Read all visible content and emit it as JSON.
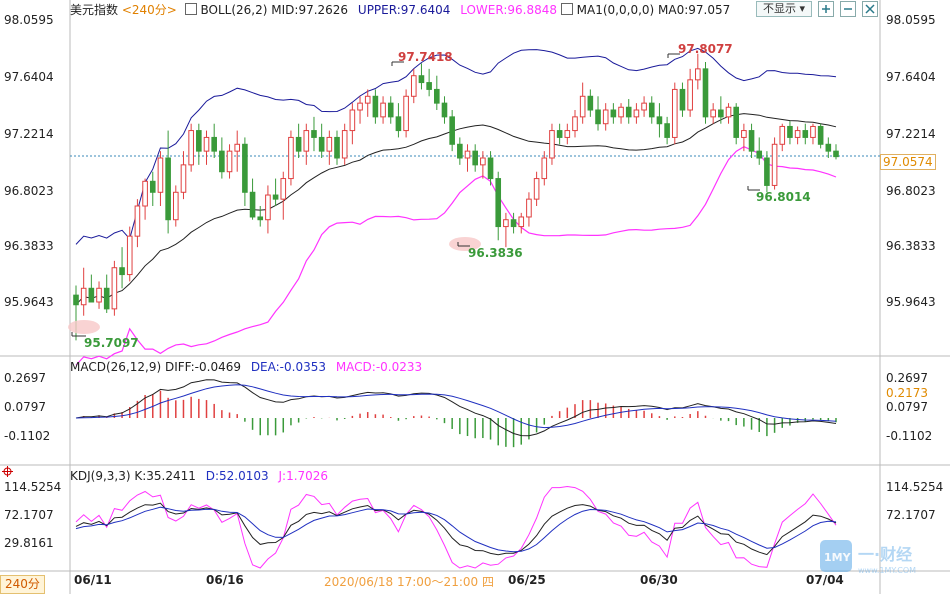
{
  "header": {
    "symbol": "美元指数",
    "period": "<240分>",
    "boll": "BOLL(26,2)",
    "mid": "MID:97.2626",
    "upper": "UPPER:97.6404",
    "lower": "LOWER:96.8848",
    "ma": "MA1(0,0,0,0)",
    "ma0": "MA0:97.057",
    "hide_btn": "不显示"
  },
  "main_axis": [
    "98.0595",
    "97.6404",
    "97.2214",
    "96.8023",
    "96.3833",
    "95.9643"
  ],
  "last_price": "97.0574",
  "annotations": {
    "high1": "97.7418",
    "high2": "97.8077",
    "low1": "95.7097",
    "low2": "96.3836",
    "low3": "96.8014"
  },
  "macd": {
    "title": "MACD(26,12,9)",
    "diff": "DIFF:-0.0469",
    "dea": "DEA:-0.0353",
    "macd": "MACD:-0.0233",
    "axis": [
      "0.2697",
      "0.0797",
      "-0.1102"
    ],
    "marker": "0.2173"
  },
  "kdj": {
    "title": "KDJ(9,3,3)",
    "k": "K:35.2411",
    "d": "D:52.0103",
    "j": "J:1.7026",
    "axis": [
      "114.5254",
      "72.1707",
      "29.8161"
    ]
  },
  "x_axis": {
    "labels": [
      "06/11",
      "06/16",
      "06/25",
      "06/30",
      "07/04"
    ],
    "cursor": "2020/06/18 17:00～21:00 四",
    "period_button": "240分"
  },
  "colors": {
    "up": "#e04040",
    "down": "#3a9a3a",
    "upper": "#1a1a9a",
    "lower": "#ff33ff",
    "mid": "#222222",
    "dea": "#2030c0"
  },
  "chart_data": {
    "type": "candlestick",
    "title": "美元指数",
    "ylim": [
      95.65,
      98.1
    ],
    "ohlc": [
      [
        96.05,
        96.12,
        95.72,
        95.98
      ],
      [
        95.98,
        96.25,
        95.9,
        96.1
      ],
      [
        96.1,
        96.2,
        96.0,
        96.0
      ],
      [
        96.0,
        96.15,
        95.95,
        96.1
      ],
      [
        96.1,
        96.2,
        95.92,
        95.95
      ],
      [
        95.95,
        96.3,
        95.9,
        96.25
      ],
      [
        96.25,
        96.4,
        96.1,
        96.2
      ],
      [
        96.2,
        96.55,
        96.15,
        96.48
      ],
      [
        96.48,
        96.75,
        96.4,
        96.7
      ],
      [
        96.7,
        96.9,
        96.6,
        96.88
      ],
      [
        96.88,
        96.95,
        96.7,
        96.8
      ],
      [
        96.8,
        97.1,
        96.7,
        97.05
      ],
      [
        97.05,
        97.25,
        96.5,
        96.6
      ],
      [
        96.6,
        96.85,
        96.55,
        96.8
      ],
      [
        96.8,
        97.1,
        96.75,
        97.0
      ],
      [
        97.0,
        97.3,
        96.95,
        97.25
      ],
      [
        97.25,
        97.3,
        97.0,
        97.1
      ],
      [
        97.1,
        97.25,
        97.0,
        97.2
      ],
      [
        97.2,
        97.3,
        97.05,
        97.1
      ],
      [
        97.1,
        97.2,
        96.9,
        96.95
      ],
      [
        96.95,
        97.15,
        96.9,
        97.1
      ],
      [
        97.1,
        97.25,
        96.95,
        97.15
      ],
      [
        97.15,
        97.2,
        96.7,
        96.8
      ],
      [
        96.8,
        96.9,
        96.6,
        96.62
      ],
      [
        96.62,
        96.7,
        96.55,
        96.6
      ],
      [
        96.6,
        96.85,
        96.5,
        96.78
      ],
      [
        96.78,
        96.9,
        96.7,
        96.75
      ],
      [
        96.75,
        96.95,
        96.6,
        96.9
      ],
      [
        96.9,
        97.25,
        96.85,
        97.2
      ],
      [
        97.2,
        97.3,
        97.05,
        97.1
      ],
      [
        97.1,
        97.3,
        97.0,
        97.25
      ],
      [
        97.25,
        97.35,
        97.1,
        97.2
      ],
      [
        97.2,
        97.3,
        97.05,
        97.1
      ],
      [
        97.1,
        97.25,
        97.0,
        97.2
      ],
      [
        97.2,
        97.25,
        97.0,
        97.05
      ],
      [
        97.05,
        97.3,
        97.0,
        97.25
      ],
      [
        97.25,
        97.45,
        97.15,
        97.4
      ],
      [
        97.4,
        97.5,
        97.3,
        97.45
      ],
      [
        97.45,
        97.55,
        97.35,
        97.5
      ],
      [
        97.5,
        97.55,
        97.3,
        97.35
      ],
      [
        97.35,
        97.5,
        97.3,
        97.45
      ],
      [
        97.45,
        97.5,
        97.3,
        97.35
      ],
      [
        97.35,
        97.45,
        97.2,
        97.25
      ],
      [
        97.25,
        97.55,
        97.2,
        97.5
      ],
      [
        97.5,
        97.7,
        97.45,
        97.65
      ],
      [
        97.65,
        97.74,
        97.55,
        97.6
      ],
      [
        97.6,
        97.7,
        97.5,
        97.55
      ],
      [
        97.55,
        97.65,
        97.4,
        97.45
      ],
      [
        97.45,
        97.5,
        97.3,
        97.35
      ],
      [
        97.35,
        97.4,
        97.1,
        97.15
      ],
      [
        97.15,
        97.2,
        97.0,
        97.05
      ],
      [
        97.05,
        97.15,
        96.95,
        97.1
      ],
      [
        97.1,
        97.15,
        96.95,
        97.0
      ],
      [
        97.0,
        97.1,
        96.9,
        97.05
      ],
      [
        97.05,
        97.1,
        96.85,
        96.9
      ],
      [
        96.9,
        96.95,
        96.45,
        96.55
      ],
      [
        96.55,
        96.65,
        96.4,
        96.6
      ],
      [
        96.6,
        96.65,
        96.5,
        96.55
      ],
      [
        96.55,
        96.65,
        96.5,
        96.62
      ],
      [
        96.62,
        96.8,
        96.55,
        96.75
      ],
      [
        96.75,
        96.95,
        96.7,
        96.9
      ],
      [
        96.9,
        97.1,
        96.85,
        97.05
      ],
      [
        97.05,
        97.3,
        97.0,
        97.25
      ],
      [
        97.25,
        97.3,
        97.15,
        97.2
      ],
      [
        97.2,
        97.3,
        97.15,
        97.25
      ],
      [
        97.25,
        97.4,
        97.2,
        97.35
      ],
      [
        97.35,
        97.6,
        97.3,
        97.5
      ],
      [
        97.5,
        97.55,
        97.35,
        97.4
      ],
      [
        97.4,
        97.5,
        97.25,
        97.3
      ],
      [
        97.3,
        97.45,
        97.25,
        97.4
      ],
      [
        97.4,
        97.45,
        97.3,
        97.35
      ],
      [
        97.35,
        97.45,
        97.3,
        97.42
      ],
      [
        97.42,
        97.48,
        97.3,
        97.35
      ],
      [
        97.35,
        97.45,
        97.3,
        97.4
      ],
      [
        97.4,
        97.5,
        97.35,
        97.45
      ],
      [
        97.45,
        97.5,
        97.3,
        97.35
      ],
      [
        97.35,
        97.45,
        97.2,
        97.3
      ],
      [
        97.3,
        97.35,
        97.15,
        97.2
      ],
      [
        97.2,
        97.6,
        97.15,
        97.55
      ],
      [
        97.55,
        97.6,
        97.35,
        97.4
      ],
      [
        97.4,
        97.7,
        97.35,
        97.62
      ],
      [
        97.62,
        97.81,
        97.55,
        97.7
      ],
      [
        97.7,
        97.75,
        97.3,
        97.35
      ],
      [
        97.35,
        97.45,
        97.3,
        97.4
      ],
      [
        97.4,
        97.5,
        97.3,
        97.35
      ],
      [
        97.35,
        97.45,
        97.3,
        97.42
      ],
      [
        97.42,
        97.45,
        97.15,
        97.2
      ],
      [
        97.2,
        97.3,
        97.1,
        97.25
      ],
      [
        97.25,
        97.3,
        97.05,
        97.1
      ],
      [
        97.1,
        97.2,
        97.0,
        97.05
      ],
      [
        97.05,
        97.1,
        96.8,
        96.85
      ],
      [
        96.85,
        97.2,
        96.82,
        97.15
      ],
      [
        97.15,
        97.3,
        97.1,
        97.28
      ],
      [
        97.28,
        97.32,
        97.15,
        97.2
      ],
      [
        97.2,
        97.28,
        97.15,
        97.25
      ],
      [
        97.25,
        97.3,
        97.15,
        97.2
      ],
      [
        97.2,
        97.3,
        97.15,
        97.28
      ],
      [
        97.28,
        97.3,
        97.12,
        97.15
      ],
      [
        97.15,
        97.2,
        97.05,
        97.1
      ],
      [
        97.1,
        97.15,
        97.04,
        97.06
      ]
    ]
  }
}
